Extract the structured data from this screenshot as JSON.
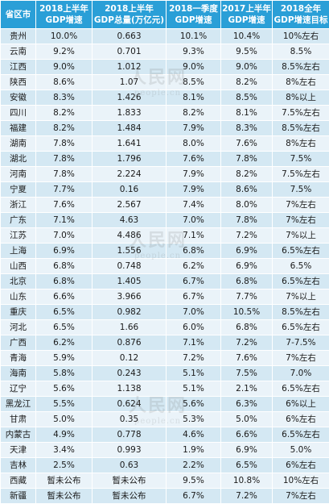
{
  "headers": [
    [
      "省区市"
    ],
    [
      "2018上半年",
      "GDP增速"
    ],
    [
      "2018上半年",
      "GDP总量(万亿元)"
    ],
    [
      "2018一季度",
      "GDP增速"
    ],
    [
      "2017上半年",
      "GDP增速"
    ],
    [
      "2018全年",
      "GDP增速目标"
    ]
  ],
  "rows": [
    [
      "贵州",
      "10.0%",
      "0.663",
      "10.1%",
      "10.4%",
      "10%左右"
    ],
    [
      "云南",
      "9.2%",
      "0.701",
      "9.3%",
      "9.5%",
      "8.5%"
    ],
    [
      "江西",
      "9.0%",
      "1.012",
      "9.0%",
      "9.0%",
      "8.5%左右"
    ],
    [
      "陕西",
      "8.6%",
      "1.07",
      "8.5%",
      "8.2%",
      "8%左右"
    ],
    [
      "安徽",
      "8.3%",
      "1.426",
      "8.1%",
      "8.5%",
      "8%以上"
    ],
    [
      "四川",
      "8.2%",
      "1.833",
      "8.2%",
      "8.1%",
      "7.5%左右"
    ],
    [
      "福建",
      "8.2%",
      "1.484",
      "7.9%",
      "8.3%",
      "8.5%左右"
    ],
    [
      "湖南",
      "7.8%",
      "1.641",
      "8.0%",
      "7.6%",
      "8%左右"
    ],
    [
      "湖北",
      "7.8%",
      "1.796",
      "7.6%",
      "7.8%",
      "7.5%"
    ],
    [
      "河南",
      "7.8%",
      "2.224",
      "7.9%",
      "8.2%",
      "7.5%左右"
    ],
    [
      "宁夏",
      "7.7%",
      "0.16",
      "7.9%",
      "8.6%",
      "7.5%"
    ],
    [
      "浙江",
      "7.6%",
      "2.567",
      "7.4%",
      "8.0%",
      "7%左右"
    ],
    [
      "广东",
      "7.1%",
      "4.63",
      "7.0%",
      "7.8%",
      "7%左右"
    ],
    [
      "江苏",
      "7.0%",
      "4.486",
      "7.1%",
      "7.2%",
      "7%以上"
    ],
    [
      "上海",
      "6.9%",
      "1.556",
      "6.8%",
      "6.9%",
      "6.5%左右"
    ],
    [
      "山西",
      "6.8%",
      "0.748",
      "6.2%",
      "6.9%",
      "6.5%"
    ],
    [
      "北京",
      "6.8%",
      "1.405",
      "6.7%",
      "6.8%",
      "6.5%左右"
    ],
    [
      "山东",
      "6.6%",
      "3.966",
      "6.7%",
      "7.7%",
      "7%以上"
    ],
    [
      "重庆",
      "6.5%",
      "0.982",
      "7.0%",
      "10.5%",
      "8.5%左右"
    ],
    [
      "河北",
      "6.5%",
      "1.66",
      "6.0%",
      "6.8%",
      "6.5%左右"
    ],
    [
      "广西",
      "6.2%",
      "0.876",
      "7.1%",
      "7.2%",
      "7-7.5%"
    ],
    [
      "青海",
      "5.9%",
      "0.12",
      "7.2%",
      "7.6%",
      "7%左右"
    ],
    [
      "海南",
      "5.8%",
      "0.243",
      "5.1%",
      "7.5%",
      "7.0%"
    ],
    [
      "辽宁",
      "5.6%",
      "1.138",
      "5.1%",
      "2.1%",
      "6.5%左右"
    ],
    [
      "黑龙江",
      "5.5%",
      "0.624",
      "5.6%",
      "6.3%",
      "6%以上"
    ],
    [
      "甘肃",
      "5.0%",
      "0.35",
      "5.3%",
      "5.0%",
      "6%左右"
    ],
    [
      "内蒙古",
      "4.9%",
      "0.778",
      "4.6%",
      "6.6%",
      "6.5%左右"
    ],
    [
      "天津",
      "3.4%",
      "0.993",
      "1.9%",
      "6.9%",
      "5.0%"
    ],
    [
      "吉林",
      "2.5%",
      "0.63",
      "2.2%",
      "6.5%",
      "6%左右"
    ],
    [
      "西藏",
      "暂未公布",
      "暂未公布",
      "9.5%",
      "10.8%",
      "10%左右"
    ],
    [
      "新疆",
      "暂未公布",
      "暂未公布",
      "6.7%",
      "7.2%",
      "7%左右"
    ]
  ],
  "watermark": {
    "cn": "人民网",
    "en": "people.cn"
  }
}
